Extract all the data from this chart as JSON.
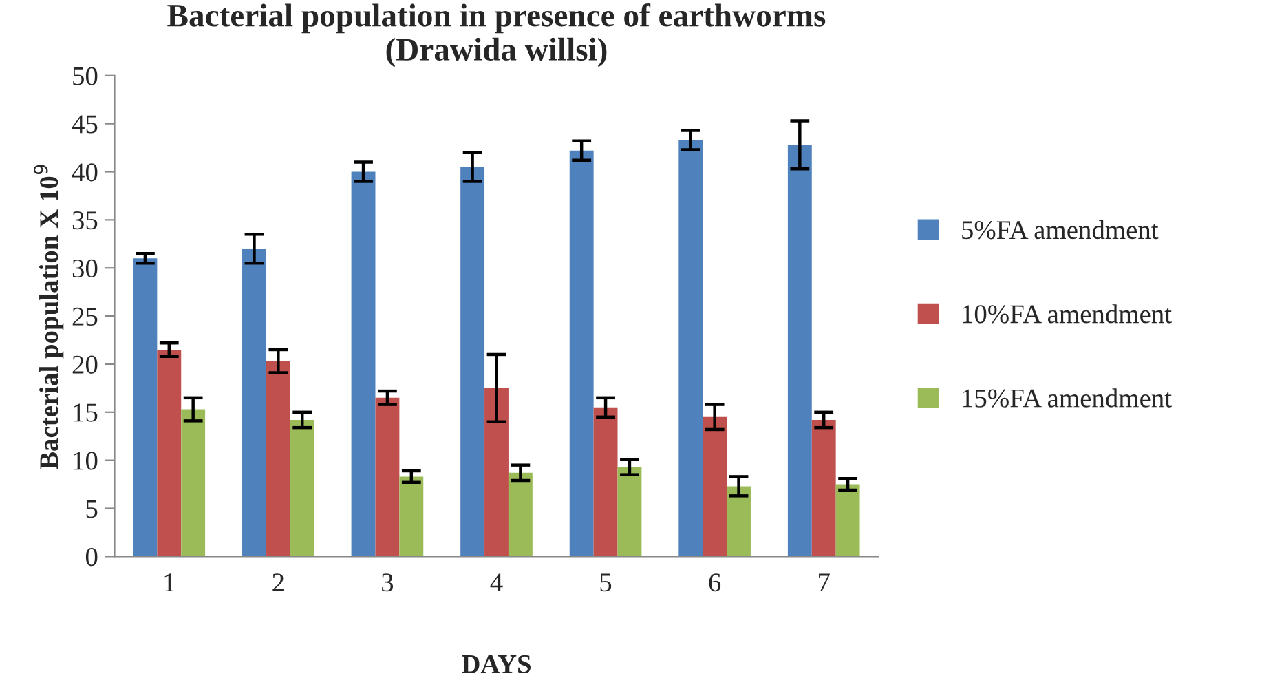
{
  "chart_data": {
    "type": "bar",
    "title": "Bacterial population in presence of earthworms\n(Drawida willsi)",
    "xlabel": "DAYS",
    "ylabel": "Bacterial population X 10$^{9}$",
    "categories": [
      "1",
      "2",
      "3",
      "4",
      "5",
      "6",
      "7"
    ],
    "series": [
      {
        "name": "5%FA amendment",
        "color": "#4f81bd",
        "values": [
          31,
          32,
          40,
          40.5,
          42.2,
          43.3,
          42.8
        ],
        "errors": [
          0.5,
          1.5,
          1,
          1.5,
          1,
          1,
          2.5
        ]
      },
      {
        "name": "10%FA amendment",
        "color": "#c0504d",
        "values": [
          21.5,
          20.3,
          16.5,
          17.5,
          15.5,
          14.5,
          14.2
        ],
        "errors": [
          0.7,
          1.2,
          0.7,
          3.5,
          1,
          1.3,
          0.8
        ]
      },
      {
        "name": "15%FA amendment",
        "color": "#9bbb59",
        "values": [
          15.3,
          14.2,
          8.3,
          8.7,
          9.3,
          7.3,
          7.5
        ],
        "errors": [
          1.2,
          0.8,
          0.6,
          0.8,
          0.8,
          1,
          0.6
        ]
      }
    ],
    "ylim": [
      0,
      50
    ],
    "yticks": [
      0,
      5,
      10,
      15,
      20,
      25,
      30,
      35,
      40,
      45,
      50
    ],
    "grid": false,
    "legend": "right"
  }
}
